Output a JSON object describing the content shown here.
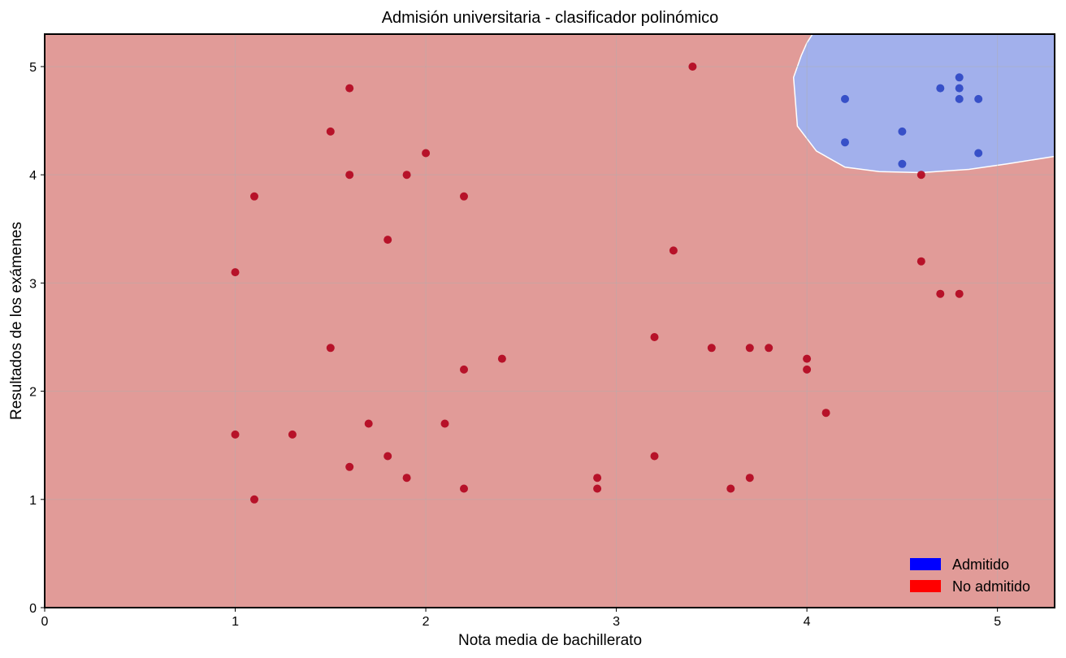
{
  "chart_data": {
    "type": "scatter",
    "title": "Admisión universitaria - clasificador polinómico",
    "xlabel": "Nota media de bachillerato",
    "ylabel": "Resultados de los exámenes",
    "xlim": [
      0,
      5.3
    ],
    "ylim": [
      0,
      5.3
    ],
    "xticks": [
      0,
      1,
      2,
      3,
      4,
      5
    ],
    "yticks": [
      0,
      1,
      2,
      3,
      4,
      5
    ],
    "grid": true,
    "legend_position": "bottom-right",
    "background_region": {
      "name": "No admitido",
      "color": "#e19b98"
    },
    "decision_region": {
      "name": "Admitido",
      "color": "#a2b0ec",
      "boundary": [
        [
          5.3,
          4.17
        ],
        [
          5.05,
          4.1
        ],
        [
          4.85,
          4.05
        ],
        [
          4.6,
          4.02
        ],
        [
          4.38,
          4.03
        ],
        [
          4.2,
          4.07
        ],
        [
          4.05,
          4.22
        ],
        [
          3.95,
          4.45
        ],
        [
          3.93,
          4.9
        ],
        [
          3.97,
          5.1
        ],
        [
          4.0,
          5.22
        ],
        [
          4.03,
          5.3
        ]
      ]
    },
    "series": [
      {
        "name": "Admitido",
        "legend_color": "#0000ff",
        "point_color": "#2e48c4",
        "x": [
          4.2,
          4.2,
          4.5,
          4.5,
          4.7,
          4.8,
          4.8,
          4.8,
          4.9,
          4.9
        ],
        "y": [
          4.7,
          4.3,
          4.4,
          4.1,
          4.8,
          4.9,
          4.8,
          4.7,
          4.7,
          4.2
        ]
      },
      {
        "name": "No admitido",
        "legend_color": "#ff0000",
        "point_color": "#b3061f",
        "x": [
          1.0,
          1.0,
          1.1,
          1.1,
          1.3,
          1.5,
          1.5,
          1.6,
          1.6,
          1.6,
          1.7,
          1.8,
          1.8,
          1.9,
          1.9,
          2.0,
          2.1,
          2.2,
          2.2,
          2.2,
          2.4,
          2.9,
          2.9,
          3.2,
          3.2,
          3.3,
          3.4,
          3.5,
          3.6,
          3.7,
          3.7,
          3.8,
          4.0,
          4.0,
          4.1,
          4.6,
          4.6,
          4.7,
          4.8
        ],
        "y": [
          3.1,
          1.6,
          3.8,
          1.0,
          1.6,
          4.4,
          2.4,
          4.8,
          4.0,
          1.3,
          1.7,
          3.4,
          1.4,
          4.0,
          1.2,
          4.2,
          1.7,
          3.8,
          2.2,
          1.1,
          2.3,
          1.2,
          1.1,
          2.5,
          1.4,
          3.3,
          5.0,
          2.4,
          1.1,
          2.4,
          1.2,
          2.4,
          2.3,
          2.2,
          1.8,
          4.0,
          3.2,
          2.9,
          2.9
        ]
      }
    ]
  }
}
